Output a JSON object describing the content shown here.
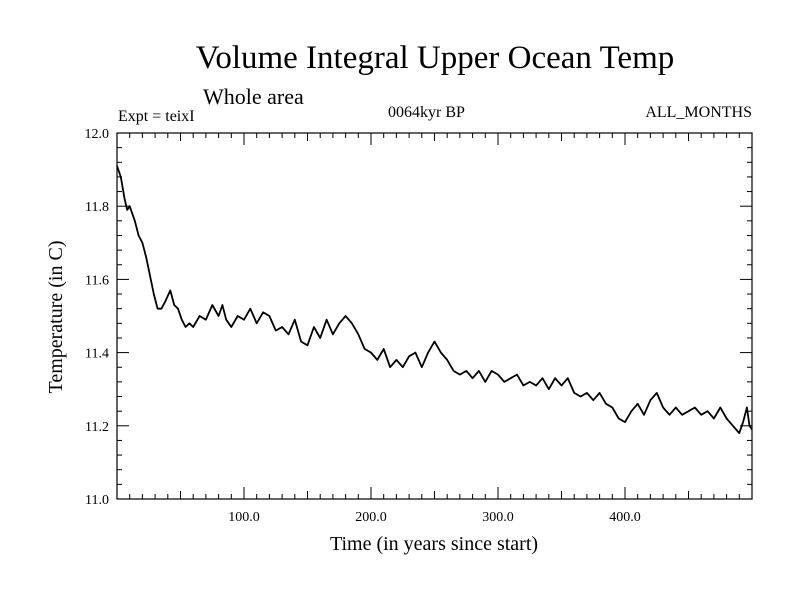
{
  "header": {
    "title": "Volume Integral Upper Ocean Temp",
    "subtitle": "Whole area",
    "experiment": "Expt = teixI",
    "period": "0064kyr BP",
    "months": "ALL_MONTHS"
  },
  "chart_data": {
    "type": "line",
    "title": "Volume Integral Upper Ocean Temp",
    "subtitle": "Whole area",
    "xlabel": "Time (in years since start)",
    "ylabel": "Temperature (in C)",
    "xlim": [
      0,
      500
    ],
    "ylim": [
      11.0,
      12.0
    ],
    "x_ticks": [
      100,
      200,
      300,
      400
    ],
    "x_tick_labels": [
      "100.0",
      "200.0",
      "300.0",
      "400.0"
    ],
    "y_ticks": [
      11.0,
      11.2,
      11.4,
      11.6,
      11.8,
      12.0
    ],
    "y_tick_labels": [
      "11.0",
      "11.2",
      "11.4",
      "11.6",
      "11.8",
      "12.0"
    ],
    "grid": false,
    "color": "#000000",
    "series": [
      {
        "x": [
          0,
          3,
          6,
          8,
          10,
          14,
          17,
          20,
          23,
          26,
          29,
          32,
          35,
          38,
          42,
          45,
          48,
          51,
          54,
          57,
          60,
          65,
          70,
          75,
          80,
          83,
          86,
          90,
          95,
          100,
          105,
          110,
          115,
          120,
          125,
          130,
          135,
          140,
          145,
          150,
          155,
          160,
          165,
          170,
          175,
          180,
          185,
          190,
          195,
          200,
          205,
          210,
          215,
          220,
          225,
          230,
          235,
          240,
          245,
          250,
          255,
          260,
          265,
          270,
          275,
          280,
          285,
          290,
          295,
          300,
          305,
          310,
          315,
          320,
          325,
          330,
          335,
          340,
          345,
          350,
          355,
          360,
          365,
          370,
          375,
          380,
          385,
          390,
          395,
          400,
          405,
          410,
          415,
          420,
          425,
          430,
          435,
          440,
          445,
          450,
          455,
          460,
          465,
          470,
          475,
          480,
          485,
          490,
          493,
          496,
          498,
          500
        ],
        "y": [
          11.91,
          11.88,
          11.82,
          11.79,
          11.8,
          11.76,
          11.72,
          11.7,
          11.66,
          11.61,
          11.56,
          11.52,
          11.52,
          11.54,
          11.57,
          11.53,
          11.52,
          11.49,
          11.47,
          11.48,
          11.47,
          11.5,
          11.49,
          11.53,
          11.5,
          11.53,
          11.49,
          11.47,
          11.5,
          11.49,
          11.52,
          11.48,
          11.51,
          11.5,
          11.46,
          11.47,
          11.45,
          11.49,
          11.43,
          11.42,
          11.47,
          11.44,
          11.49,
          11.45,
          11.48,
          11.5,
          11.48,
          11.45,
          11.41,
          11.4,
          11.38,
          11.41,
          11.36,
          11.38,
          11.36,
          11.39,
          11.4,
          11.36,
          11.4,
          11.43,
          11.4,
          11.38,
          11.35,
          11.34,
          11.35,
          11.33,
          11.35,
          11.32,
          11.35,
          11.34,
          11.32,
          11.33,
          11.34,
          11.31,
          11.32,
          11.31,
          11.33,
          11.3,
          11.33,
          11.31,
          11.33,
          11.29,
          11.28,
          11.29,
          11.27,
          11.29,
          11.26,
          11.25,
          11.22,
          11.21,
          11.24,
          11.26,
          11.23,
          11.27,
          11.29,
          11.25,
          11.23,
          11.25,
          11.23,
          11.24,
          11.25,
          11.23,
          11.24,
          11.22,
          11.25,
          11.22,
          11.2,
          11.18,
          11.21,
          11.25,
          11.2,
          11.19
        ]
      }
    ]
  }
}
